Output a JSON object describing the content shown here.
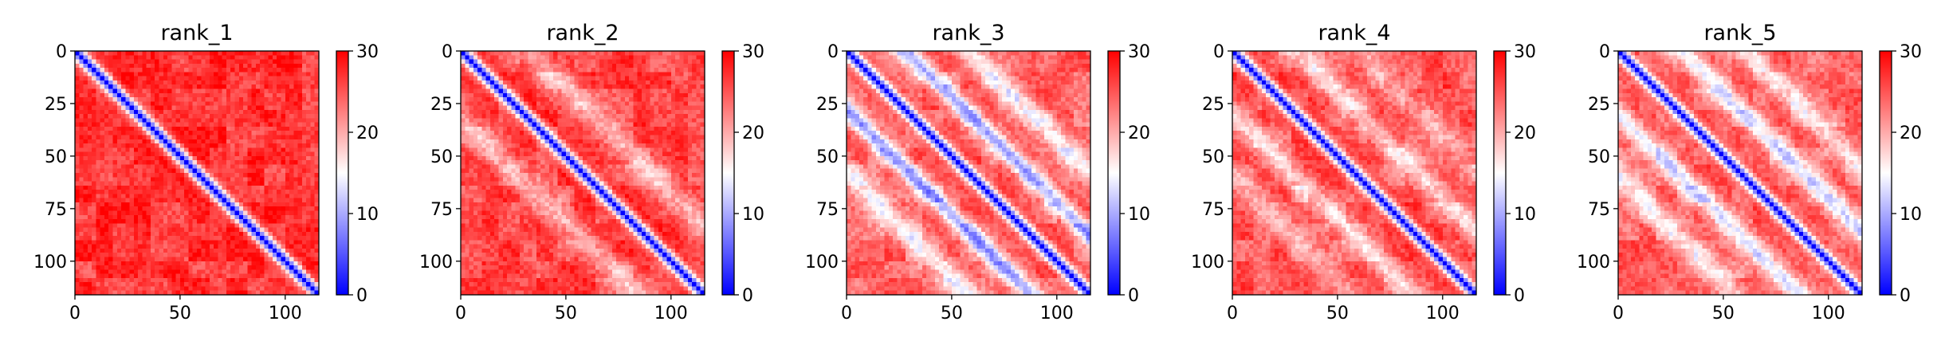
{
  "chart_data": [
    {
      "type": "heatmap",
      "title": "rank_1",
      "matrix_size": 116,
      "x_ticks": [
        0,
        50,
        100
      ],
      "y_ticks": [
        0,
        25,
        50,
        75,
        100
      ],
      "xlim": [
        0,
        116
      ],
      "ylim": [
        116,
        0
      ],
      "colorbar": {
        "range": [
          0,
          30
        ],
        "ticks": [
          0,
          10,
          20,
          30
        ],
        "colors": [
          "#0000ff",
          "#ffffff",
          "#ff0000"
        ]
      },
      "pattern": {
        "diag_width": 3.0,
        "bands": [],
        "background": 27
      },
      "grid": false
    },
    {
      "type": "heatmap",
      "title": "rank_2",
      "matrix_size": 116,
      "x_ticks": [
        0,
        50,
        100
      ],
      "y_ticks": [
        0,
        25,
        50,
        75,
        100
      ],
      "xlim": [
        0,
        116
      ],
      "ylim": [
        116,
        0
      ],
      "colorbar": {
        "range": [
          0,
          30
        ],
        "ticks": [
          0,
          10,
          20,
          30
        ],
        "colors": [
          "#0000ff",
          "#ffffff",
          "#ff0000"
        ]
      },
      "pattern": {
        "diag_width": 3.0,
        "bands": [
          {
            "offset": 32,
            "strength": 7,
            "width": 9
          }
        ],
        "background": 26
      },
      "grid": false
    },
    {
      "type": "heatmap",
      "title": "rank_3",
      "matrix_size": 116,
      "x_ticks": [
        0,
        50,
        100
      ],
      "y_ticks": [
        0,
        25,
        50,
        75,
        100
      ],
      "xlim": [
        0,
        116
      ],
      "ylim": [
        116,
        0
      ],
      "colorbar": {
        "range": [
          0,
          30
        ],
        "ticks": [
          0,
          10,
          20,
          30
        ],
        "colors": [
          "#0000ff",
          "#ffffff",
          "#ff0000"
        ]
      },
      "pattern": {
        "diag_width": 3.0,
        "bands": [
          {
            "offset": 28,
            "strength": 15,
            "width": 6
          },
          {
            "offset": 58,
            "strength": 9,
            "width": 8
          }
        ],
        "background": 24
      },
      "grid": false
    },
    {
      "type": "heatmap",
      "title": "rank_4",
      "matrix_size": 116,
      "x_ticks": [
        0,
        50,
        100
      ],
      "y_ticks": [
        0,
        25,
        50,
        75,
        100
      ],
      "xlim": [
        0,
        116
      ],
      "ylim": [
        116,
        0
      ],
      "colorbar": {
        "range": [
          0,
          30
        ],
        "ticks": [
          0,
          10,
          20,
          30
        ],
        "colors": [
          "#0000ff",
          "#ffffff",
          "#ff0000"
        ]
      },
      "pattern": {
        "diag_width": 3.0,
        "bands": [
          {
            "offset": 30,
            "strength": 8,
            "width": 8
          },
          {
            "offset": 60,
            "strength": 5,
            "width": 8
          }
        ],
        "background": 25
      },
      "grid": false
    },
    {
      "type": "heatmap",
      "title": "rank_5",
      "matrix_size": 116,
      "x_ticks": [
        0,
        50,
        100
      ],
      "y_ticks": [
        0,
        25,
        50,
        75,
        100
      ],
      "xlim": [
        0,
        116
      ],
      "ylim": [
        116,
        0
      ],
      "colorbar": {
        "range": [
          0,
          30
        ],
        "ticks": [
          0,
          10,
          20,
          30
        ],
        "colors": [
          "#0000ff",
          "#ffffff",
          "#ff0000"
        ]
      },
      "pattern": {
        "diag_width": 3.0,
        "bands": [
          {
            "offset": 30,
            "strength": 11,
            "width": 7
          },
          {
            "offset": 60,
            "strength": 8,
            "width": 8
          }
        ],
        "background": 24
      },
      "grid": false
    }
  ]
}
